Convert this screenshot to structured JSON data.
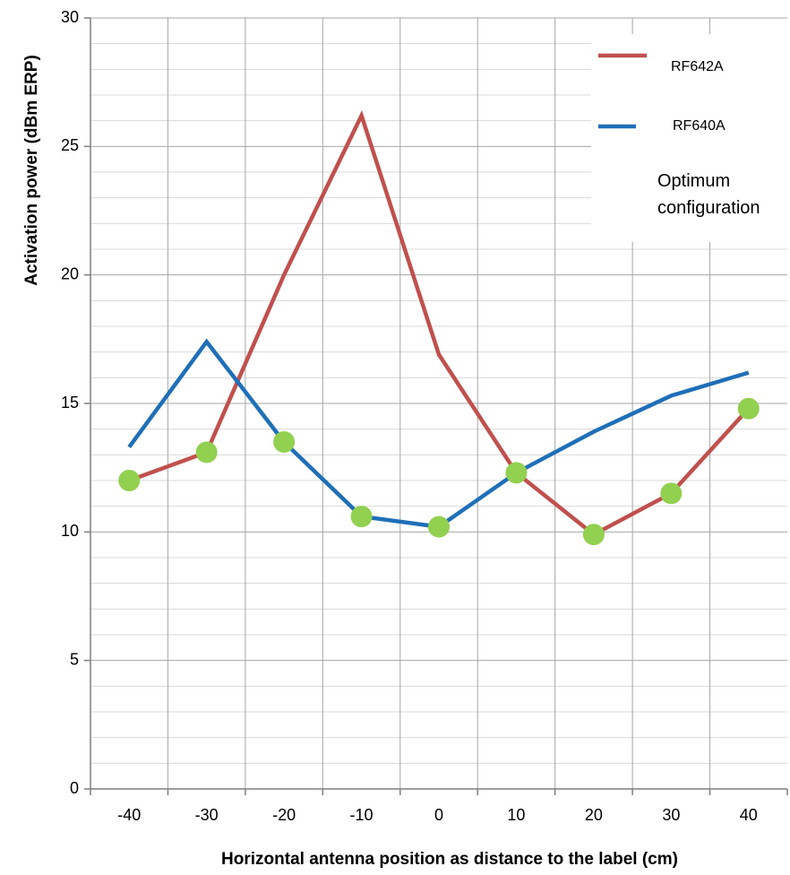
{
  "chart_data": {
    "type": "line",
    "title": "",
    "xlabel": "Horizontal antenna position as distance to the label  (cm)",
    "ylabel": "Activation power (dBm ERP)",
    "x": [
      -40,
      -30,
      -20,
      -10,
      0,
      10,
      20,
      30,
      40
    ],
    "x_tick_labels": [
      "-40",
      "-30",
      "-20",
      "-10",
      "0",
      "10",
      "20",
      "30",
      "40"
    ],
    "y_tick_values": [
      0,
      5,
      10,
      15,
      20,
      25,
      30
    ],
    "y_tick_labels": [
      "0",
      "5",
      "10",
      "15",
      "20",
      "25",
      "30"
    ],
    "xlim": [
      -45,
      45
    ],
    "ylim": [
      0,
      30
    ],
    "grid": true,
    "legend_position": "top-right",
    "series": [
      {
        "name": "RF642A",
        "color": "#c0504d",
        "values": [
          12.0,
          13.1,
          20.0,
          26.2,
          16.9,
          12.3,
          9.9,
          11.5,
          14.8
        ]
      },
      {
        "name": "RF640A",
        "color": "#1f6fb8",
        "values": [
          13.3,
          17.4,
          13.5,
          10.6,
          10.2,
          12.3,
          13.9,
          15.3,
          16.2
        ]
      }
    ],
    "optimum_points": {
      "color": "#92d050",
      "points": [
        {
          "x": -40,
          "y": 12.0
        },
        {
          "x": -30,
          "y": 13.1
        },
        {
          "x": -20,
          "y": 13.5
        },
        {
          "x": -10,
          "y": 10.6
        },
        {
          "x": 0,
          "y": 10.2
        },
        {
          "x": 10,
          "y": 12.3
        },
        {
          "x": 20,
          "y": 9.9
        },
        {
          "x": 30,
          "y": 11.5
        },
        {
          "x": 40,
          "y": 14.8
        }
      ]
    },
    "annotation": {
      "line1": "Optimum",
      "line2": "configuration"
    }
  }
}
